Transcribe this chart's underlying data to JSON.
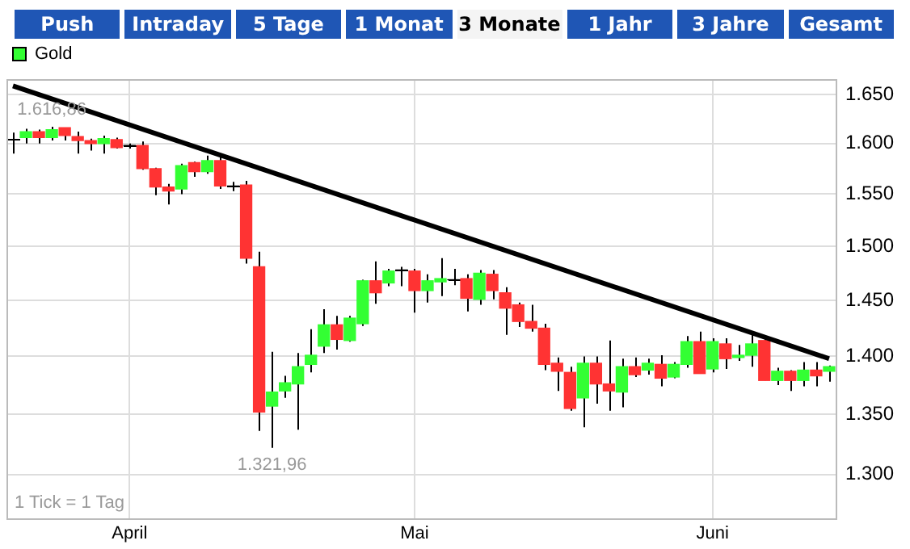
{
  "chart_data": {
    "type": "candlestick",
    "log": "y",
    "grid": true,
    "legend": "top left",
    "categories": [
      null,
      null,
      null,
      null,
      null,
      null,
      null,
      null,
      null,
      "April",
      null,
      null,
      null,
      null,
      null,
      null,
      null,
      null,
      null,
      null,
      null,
      null,
      null,
      null,
      null,
      null,
      null,
      null,
      null,
      null,
      null,
      "Mai",
      null,
      null,
      null,
      null,
      null,
      null,
      null,
      null,
      null,
      null,
      null,
      null,
      null,
      null,
      null,
      null,
      null,
      null,
      null,
      null,
      null,
      null,
      "Juni",
      null,
      null,
      null,
      null,
      null,
      null,
      null,
      null,
      null
    ],
    "ylim": [
      1265,
      1666
    ],
    "yticks": [
      {
        "value": 1300,
        "label": "1.300"
      },
      {
        "value": 1350,
        "label": "1.350"
      },
      {
        "value": 1400,
        "label": "1.400"
      },
      {
        "value": 1450,
        "label": "1.450"
      },
      {
        "value": 1500,
        "label": "1.500"
      },
      {
        "value": 1550,
        "label": "1.550"
      },
      {
        "value": 1600,
        "label": "1.600"
      },
      {
        "value": 1650,
        "label": "1.650"
      }
    ],
    "series": [
      {
        "name": "Gold",
        "color": "#33ff33",
        "colors": [
          "#000000",
          "#33ff33",
          "#ff3333",
          "#33ff33",
          "#ff3333",
          "#ff3333",
          "#ff3333",
          "#33ff33",
          "#ff3333",
          "#000000",
          "#ff3333",
          "#ff3333",
          "#ff3333",
          "#33ff33",
          "#ff3333",
          "#33ff33",
          "#ff3333",
          "#000000",
          "#ff3333",
          "#ff3333",
          "#33ff33",
          "#33ff33",
          "#33ff33",
          "#33ff33",
          "#33ff33",
          "#ff3333",
          "#33ff33",
          "#33ff33",
          "#ff3333",
          "#33ff33",
          "#000000",
          "#ff3333",
          "#33ff33",
          "#33ff33",
          "#000000",
          "#ff3333",
          "#33ff33",
          "#ff3333",
          "#ff3333",
          "#ff3333",
          "#ff3333",
          "#ff3333",
          "#ff3333",
          "#ff3333",
          "#33ff33",
          "#ff3333",
          "#ff3333",
          "#33ff33",
          "#ff3333",
          "#33ff33",
          "#ff3333",
          "#33ff33",
          "#33ff33",
          "#ff3333",
          "#33ff33",
          "#ff3333",
          "#33ff33",
          "#33ff33",
          "#ff3333",
          "#33ff33",
          "#ff3333",
          "#33ff33",
          "#ff3333",
          "#33ff33"
        ],
        "ohlc": [
          [
            1604,
            1611,
            1590,
            1604
          ],
          [
            1606,
            1615,
            1600,
            1612
          ],
          [
            1612,
            1614,
            1600,
            1606
          ],
          [
            1606,
            1616.86,
            1603,
            1614
          ],
          [
            1616,
            1616,
            1603,
            1608
          ],
          [
            1607,
            1612,
            1590,
            1603
          ],
          [
            1603,
            1605,
            1593,
            1600
          ],
          [
            1600,
            1608,
            1590,
            1605
          ],
          [
            1604,
            1606,
            1595,
            1596
          ],
          [
            1598,
            1600,
            1595,
            1598
          ],
          [
            1598,
            1602,
            1574,
            1575
          ],
          [
            1575,
            1576,
            1549,
            1557
          ],
          [
            1557,
            1560,
            1540,
            1553
          ],
          [
            1555,
            1580,
            1550,
            1578
          ],
          [
            1581,
            1582,
            1567,
            1572
          ],
          [
            1572,
            1588,
            1570,
            1583
          ],
          [
            1583,
            1588,
            1555,
            1558
          ],
          [
            1558,
            1562,
            1553,
            1558
          ],
          [
            1559,
            1563,
            1484,
            1489
          ],
          [
            1481,
            1495,
            1336,
            1352
          ],
          [
            1357,
            1404,
            1321.96,
            1369
          ],
          [
            1370,
            1383,
            1364,
            1377
          ],
          [
            1376,
            1403,
            1337,
            1391
          ],
          [
            1393,
            1424,
            1386,
            1401
          ],
          [
            1409,
            1442,
            1403,
            1428
          ],
          [
            1428,
            1436,
            1406,
            1415
          ],
          [
            1414,
            1436,
            1413,
            1434
          ],
          [
            1429,
            1469,
            1427,
            1468
          ],
          [
            1468,
            1486,
            1447,
            1457
          ],
          [
            1466,
            1479,
            1463,
            1477
          ],
          [
            1478,
            1481,
            1463,
            1478
          ],
          [
            1477,
            1479,
            1439,
            1459
          ],
          [
            1459,
            1474,
            1448,
            1468
          ],
          [
            1467,
            1489,
            1454,
            1470
          ],
          [
            1469,
            1479,
            1464,
            1469
          ],
          [
            1470,
            1474,
            1440,
            1452
          ],
          [
            1451,
            1478,
            1446,
            1475
          ],
          [
            1474,
            1478,
            1451,
            1459
          ],
          [
            1457,
            1462,
            1419,
            1443
          ],
          [
            1446,
            1448,
            1426,
            1431
          ],
          [
            1431,
            1446,
            1422,
            1425
          ],
          [
            1425,
            1429,
            1388,
            1393
          ],
          [
            1394,
            1399,
            1370,
            1387
          ],
          [
            1386,
            1391,
            1353,
            1355
          ],
          [
            1364,
            1400,
            1339,
            1394
          ],
          [
            1394,
            1400,
            1359,
            1376
          ],
          [
            1376,
            1414,
            1353,
            1370
          ],
          [
            1369,
            1398,
            1356,
            1391
          ],
          [
            1391,
            1399,
            1382,
            1384
          ],
          [
            1388,
            1398,
            1384,
            1394
          ],
          [
            1393,
            1401,
            1374,
            1381
          ],
          [
            1382,
            1395,
            1381,
            1393
          ],
          [
            1393,
            1418,
            1390,
            1413
          ],
          [
            1413,
            1422,
            1385,
            1385
          ],
          [
            1389,
            1416,
            1386,
            1413
          ],
          [
            1411,
            1416,
            1389,
            1398
          ],
          [
            1399,
            1410,
            1396,
            1401
          ],
          [
            1401,
            1422,
            1391,
            1411
          ],
          [
            1414,
            1417,
            1379,
            1379
          ],
          [
            1379,
            1390,
            1375,
            1387
          ],
          [
            1387,
            1388,
            1370,
            1379
          ],
          [
            1379,
            1395,
            1374,
            1388
          ],
          [
            1388,
            1395,
            1374,
            1383
          ],
          [
            1387,
            1392,
            1378,
            1391
          ]
        ]
      },
      {
        "type": "line",
        "color": "#000000",
        "line_style": "solid",
        "values": [
          1659,
          null,
          null,
          null,
          null,
          null,
          null,
          null,
          null,
          null,
          null,
          null,
          null,
          null,
          null,
          null,
          null,
          null,
          null,
          null,
          null,
          null,
          null,
          null,
          null,
          null,
          null,
          null,
          null,
          null,
          null,
          null,
          null,
          null,
          null,
          null,
          null,
          null,
          null,
          null,
          null,
          null,
          null,
          null,
          null,
          null,
          null,
          null,
          null,
          null,
          null,
          null,
          null,
          null,
          null,
          null,
          null,
          null,
          null,
          null,
          null,
          null,
          null,
          1398
        ]
      }
    ],
    "annotations": [
      "Push",
      "Intraday",
      "5 Tage",
      "1 Monat",
      "3 Monate",
      "1 Jahr",
      "3 Jahre",
      "Gesamt",
      {
        "text": "1 Tick = 1 Tag"
      },
      {
        "text": "1.616,86",
        "y": 1616.86
      },
      {
        "text": "1.321,96",
        "y": 1321.96
      }
    ]
  }
}
